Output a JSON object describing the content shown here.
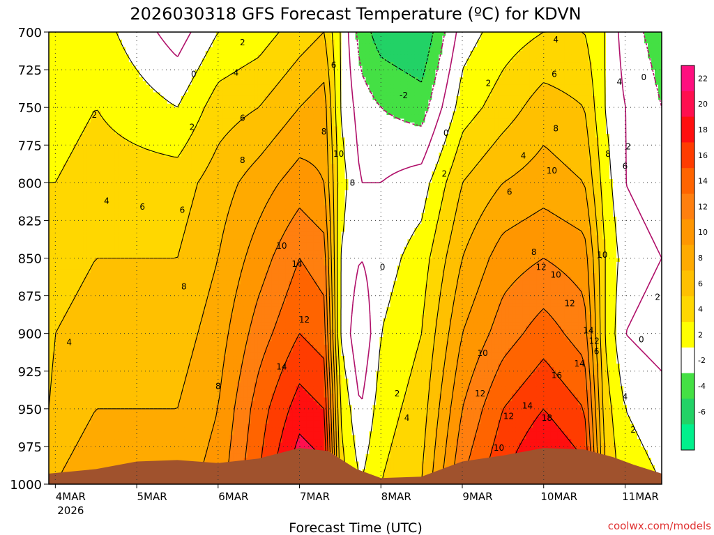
{
  "chart_data": {
    "type": "heatmap",
    "title": "2026030318 GFS Forecast Temperature (ºC) for KDVN",
    "xlabel": "Forecast Time (UTC)",
    "ylabel": "",
    "credit": "coolwx.com/models",
    "x_ticks": [
      {
        "label": "4MAR",
        "sub": "2026",
        "day": 0
      },
      {
        "label": "5MAR",
        "sub": "",
        "day": 1
      },
      {
        "label": "6MAR",
        "sub": "",
        "day": 2
      },
      {
        "label": "7MAR",
        "sub": "",
        "day": 3
      },
      {
        "label": "8MAR",
        "sub": "",
        "day": 4
      },
      {
        "label": "9MAR",
        "sub": "",
        "day": 5
      },
      {
        "label": "10MAR",
        "sub": "",
        "day": 6
      },
      {
        "label": "11MAR",
        "sub": "",
        "day": 7
      }
    ],
    "xlim": [
      -0.08,
      7.45
    ],
    "y_levels": [
      700,
      725,
      750,
      775,
      800,
      825,
      850,
      875,
      900,
      925,
      950,
      975,
      1000
    ],
    "ylim": [
      700,
      1000
    ],
    "colorbar": [
      {
        "min": 22,
        "max": 24,
        "color": "#ff0f7f",
        "label": "22"
      },
      {
        "min": 20,
        "max": 22,
        "color": "#ff0f4f",
        "label": "20"
      },
      {
        "min": 18,
        "max": 20,
        "color": "#ff0f0f",
        "label": "18"
      },
      {
        "min": 16,
        "max": 18,
        "color": "#ff3c00",
        "label": "16"
      },
      {
        "min": 14,
        "max": 16,
        "color": "#ff6400",
        "label": "14"
      },
      {
        "min": 12,
        "max": 14,
        "color": "#ff7f0f",
        "label": "12"
      },
      {
        "min": 10,
        "max": 12,
        "color": "#ff9600",
        "label": "10"
      },
      {
        "min": 8,
        "max": 10,
        "color": "#ffaa00",
        "label": "8"
      },
      {
        "min": 6,
        "max": 8,
        "color": "#ffc000",
        "label": "6"
      },
      {
        "min": 4,
        "max": 6,
        "color": "#ffd700",
        "label": "4"
      },
      {
        "min": 2,
        "max": 4,
        "color": "#ffff00",
        "label": "2"
      },
      {
        "min": -2,
        "max": 2,
        "color": "#ffffff",
        "label": "-2"
      },
      {
        "min": -4,
        "max": -2,
        "color": "#44e044",
        "label": "-4"
      },
      {
        "min": -6,
        "max": -4,
        "color": "#22d266",
        "label": "-6"
      },
      {
        "min": -8,
        "max": -6,
        "color": "#00f08c",
        "label": ""
      }
    ],
    "temperature_profiles": {
      "pressure_levels": [
        700,
        750,
        800,
        850,
        900,
        950,
        1000
      ],
      "series": [
        {
          "day": -0.08,
          "temps": [
            2,
            3,
            4,
            5,
            5,
            6,
            7
          ]
        },
        {
          "day": 0.0,
          "temps": [
            2,
            3,
            4,
            5,
            6,
            7,
            8
          ]
        },
        {
          "day": 0.5,
          "temps": [
            3,
            4,
            5,
            6,
            7,
            8,
            9
          ]
        },
        {
          "day": 1.0,
          "temps": [
            1,
            3,
            5,
            6,
            7,
            8,
            9
          ]
        },
        {
          "day": 1.5,
          "temps": [
            -1,
            2,
            5,
            6,
            7,
            8,
            9
          ]
        },
        {
          "day": 2.0,
          "temps": [
            2,
            5,
            7,
            8,
            9,
            10,
            11
          ]
        },
        {
          "day": 2.5,
          "temps": [
            3,
            6,
            9,
            11,
            13,
            15,
            16
          ]
        },
        {
          "day": 3.0,
          "temps": [
            5,
            8,
            11,
            14,
            16,
            19,
            22
          ]
        },
        {
          "day": 3.3,
          "temps": [
            6,
            9,
            10,
            13,
            15,
            18,
            21
          ]
        },
        {
          "day": 3.5,
          "temps": [
            2,
            2,
            3,
            2,
            2,
            4,
            5
          ]
        },
        {
          "day": 3.75,
          "temps": [
            -3,
            -1,
            0,
            0,
            -2,
            0,
            2
          ]
        },
        {
          "day": 4.0,
          "temps": [
            -5,
            -2,
            0,
            1,
            2,
            3,
            4
          ]
        },
        {
          "day": 4.5,
          "temps": [
            -6,
            -3,
            1,
            3,
            4,
            5,
            6
          ]
        },
        {
          "day": 5.0,
          "temps": [
            1,
            3,
            6,
            8,
            10,
            12,
            14
          ]
        },
        {
          "day": 5.5,
          "temps": [
            3,
            5,
            8,
            11,
            13,
            16,
            18
          ]
        },
        {
          "day": 6.0,
          "temps": [
            4,
            7,
            9,
            12,
            15,
            18,
            21
          ]
        },
        {
          "day": 6.5,
          "temps": [
            4,
            6,
            8,
            11,
            13,
            16,
            19
          ]
        },
        {
          "day": 6.75,
          "temps": [
            2,
            2,
            3,
            4,
            4,
            5,
            6
          ]
        },
        {
          "day": 7.0,
          "temps": [
            -1,
            0,
            0,
            1,
            0,
            2,
            3
          ]
        },
        {
          "day": 7.45,
          "temps": [
            -3,
            -2,
            -1,
            0,
            -1,
            1,
            2
          ]
        }
      ]
    },
    "contour_labels": [
      {
        "text": "0",
        "day": 1.7,
        "p": 728
      },
      {
        "text": "2",
        "day": 0.48,
        "p": 755
      },
      {
        "text": "2",
        "day": 1.68,
        "p": 763
      },
      {
        "text": "2",
        "day": 2.3,
        "p": 707
      },
      {
        "text": "4",
        "day": 2.22,
        "p": 727
      },
      {
        "text": "4",
        "day": 0.63,
        "p": 812
      },
      {
        "text": "6",
        "day": 2.3,
        "p": 757
      },
      {
        "text": "6",
        "day": 1.07,
        "p": 816
      },
      {
        "text": "6",
        "day": 1.56,
        "p": 818
      },
      {
        "text": "8",
        "day": 2.3,
        "p": 785
      },
      {
        "text": "8",
        "day": 1.58,
        "p": 869
      },
      {
        "text": "8",
        "day": 2.0,
        "p": 935
      },
      {
        "text": "8",
        "day": 3.65,
        "p": 800
      },
      {
        "text": "6",
        "day": 3.42,
        "p": 722
      },
      {
        "text": "8",
        "day": 3.3,
        "p": 766
      },
      {
        "text": "10",
        "day": 3.48,
        "p": 781
      },
      {
        "text": "10",
        "day": 2.78,
        "p": 842
      },
      {
        "text": "14",
        "day": 2.97,
        "p": 854
      },
      {
        "text": "12",
        "day": 3.06,
        "p": 891
      },
      {
        "text": "14",
        "day": 2.78,
        "p": 922
      },
      {
        "text": "4",
        "day": 0.17,
        "p": 906
      },
      {
        "text": "0",
        "day": 4.8,
        "p": 767
      },
      {
        "text": "-2",
        "day": 4.28,
        "p": 742
      },
      {
        "text": "2",
        "day": 4.78,
        "p": 794
      },
      {
        "text": "0",
        "day": 4.02,
        "p": 856
      },
      {
        "text": "2",
        "day": 4.2,
        "p": 940
      },
      {
        "text": "4",
        "day": 4.32,
        "p": 956
      },
      {
        "text": "2",
        "day": 5.32,
        "p": 734
      },
      {
        "text": "4",
        "day": 5.75,
        "p": 782
      },
      {
        "text": "4",
        "day": 6.15,
        "p": 705
      },
      {
        "text": "6",
        "day": 6.13,
        "p": 728
      },
      {
        "text": "6",
        "day": 5.58,
        "p": 806
      },
      {
        "text": "8",
        "day": 6.15,
        "p": 764
      },
      {
        "text": "8",
        "day": 5.88,
        "p": 846
      },
      {
        "text": "8",
        "day": 6.79,
        "p": 781
      },
      {
        "text": "10",
        "day": 6.1,
        "p": 792
      },
      {
        "text": "10",
        "day": 6.15,
        "p": 861
      },
      {
        "text": "12",
        "day": 5.97,
        "p": 856
      },
      {
        "text": "12",
        "day": 6.32,
        "p": 880
      },
      {
        "text": "14",
        "day": 6.55,
        "p": 898
      },
      {
        "text": "12",
        "day": 6.62,
        "p": 905
      },
      {
        "text": "6",
        "day": 6.65,
        "p": 912
      },
      {
        "text": "10",
        "day": 6.72,
        "p": 848
      },
      {
        "text": "10",
        "day": 5.25,
        "p": 913
      },
      {
        "text": "12",
        "day": 5.22,
        "p": 940
      },
      {
        "text": "12",
        "day": 5.57,
        "p": 955
      },
      {
        "text": "14",
        "day": 5.8,
        "p": 948
      },
      {
        "text": "10",
        "day": 5.45,
        "p": 976
      },
      {
        "text": "16",
        "day": 6.16,
        "p": 928
      },
      {
        "text": "14",
        "day": 6.44,
        "p": 920
      },
      {
        "text": "18",
        "day": 6.04,
        "p": 956
      },
      {
        "text": "4",
        "day": 6.93,
        "p": 733
      },
      {
        "text": "2",
        "day": 7.04,
        "p": 776
      },
      {
        "text": "6",
        "day": 7.0,
        "p": 789
      },
      {
        "text": "0",
        "day": 7.23,
        "p": 730
      },
      {
        "text": "4",
        "day": 7.0,
        "p": 942
      },
      {
        "text": "2",
        "day": 7.1,
        "p": 964
      },
      {
        "text": "0",
        "day": 7.2,
        "p": 904
      },
      {
        "text": "2",
        "day": 7.4,
        "p": 876
      }
    ],
    "terrain": [
      {
        "day": -0.08,
        "p": 993
      },
      {
        "day": 0.5,
        "p": 990
      },
      {
        "day": 1.0,
        "p": 985
      },
      {
        "day": 1.5,
        "p": 984
      },
      {
        "day": 2.0,
        "p": 986
      },
      {
        "day": 2.5,
        "p": 983
      },
      {
        "day": 3.0,
        "p": 976
      },
      {
        "day": 3.35,
        "p": 978
      },
      {
        "day": 3.7,
        "p": 990
      },
      {
        "day": 4.0,
        "p": 996
      },
      {
        "day": 4.5,
        "p": 995
      },
      {
        "day": 5.0,
        "p": 985
      },
      {
        "day": 5.5,
        "p": 981
      },
      {
        "day": 6.0,
        "p": 976
      },
      {
        "day": 6.5,
        "p": 977
      },
      {
        "day": 6.85,
        "p": 982
      },
      {
        "day": 7.1,
        "p": 987
      },
      {
        "day": 7.45,
        "p": 993
      }
    ]
  }
}
